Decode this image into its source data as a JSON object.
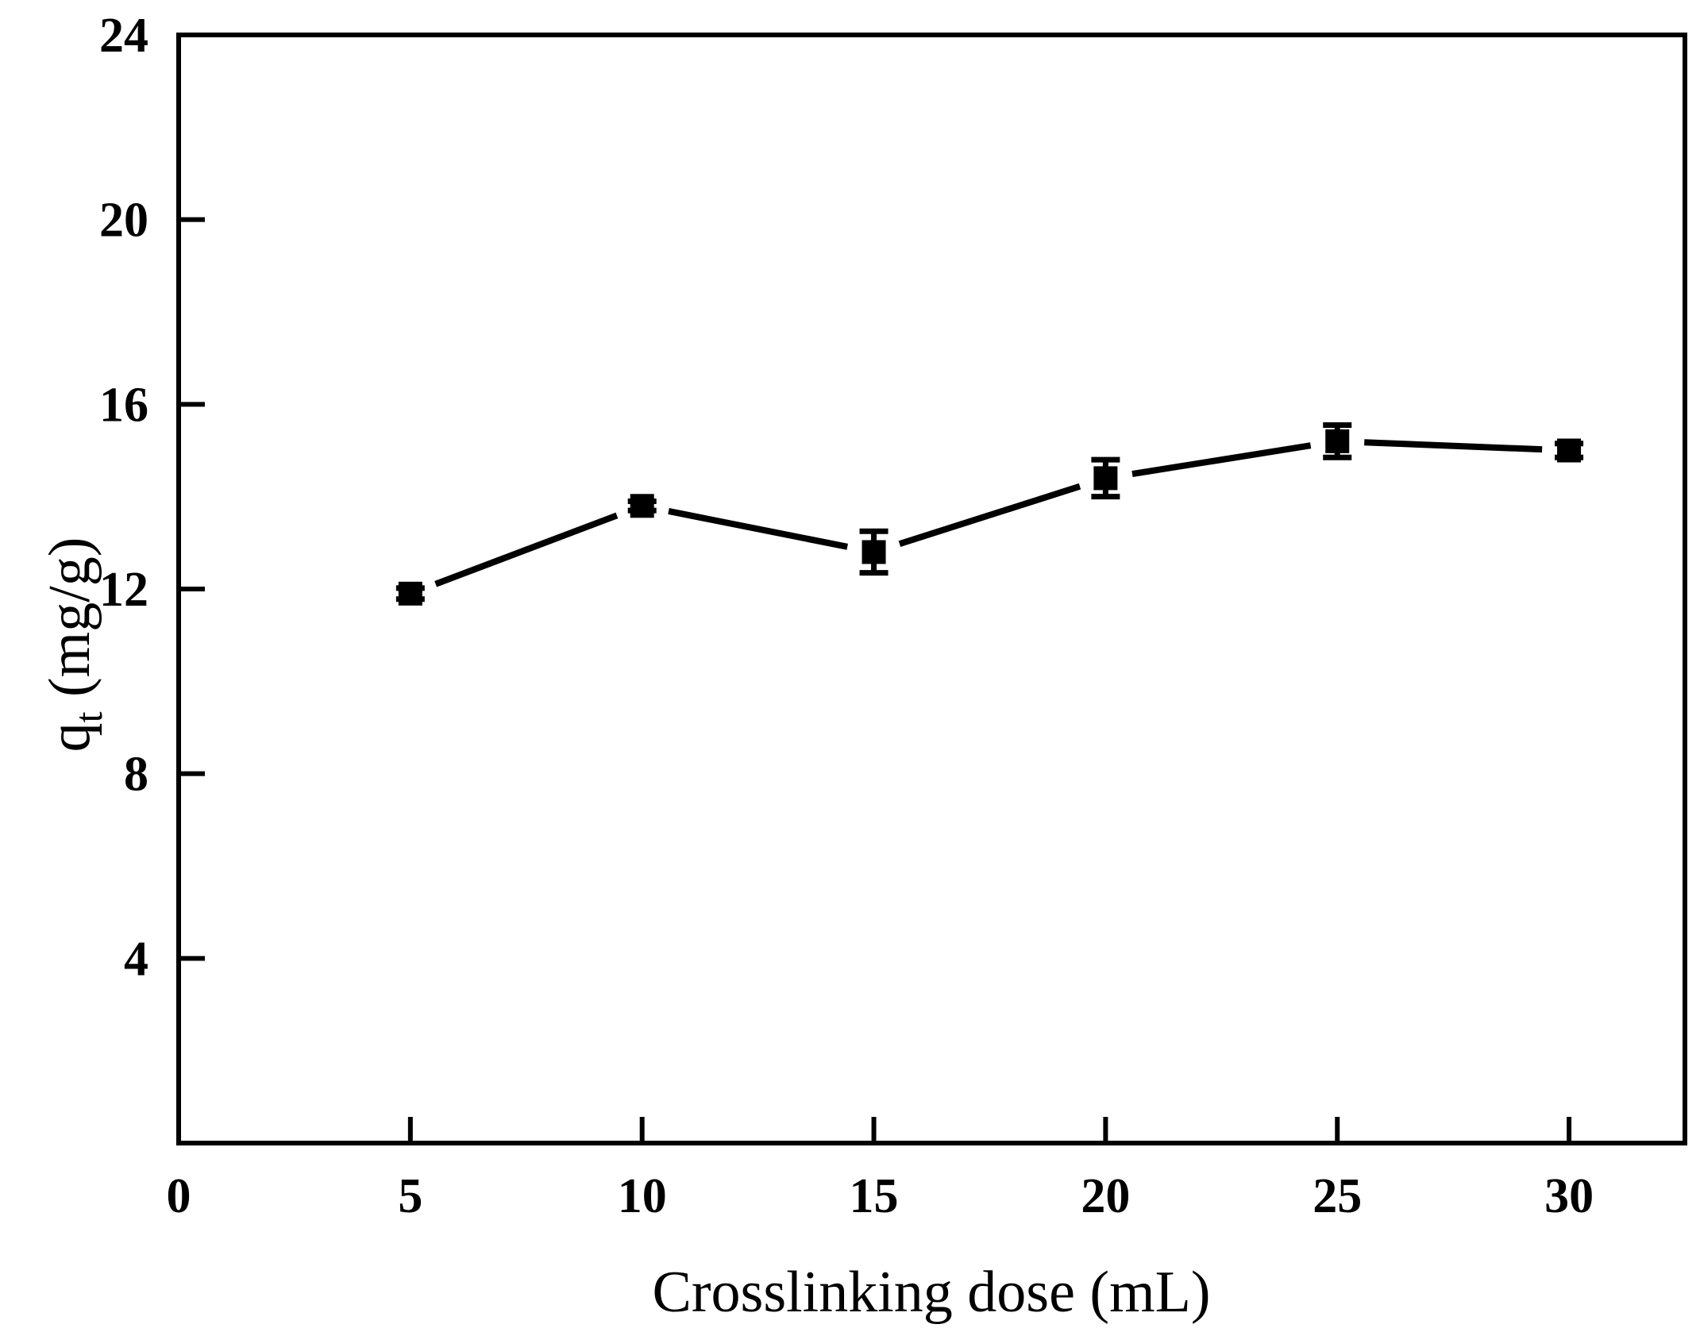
{
  "figure": {
    "background": "#ffffff",
    "ink_color": "#000000"
  },
  "chart_data": {
    "type": "line",
    "title": "",
    "xlabel": "Crosslinking dose (mL)",
    "ylabel": {
      "base": "q",
      "sub": "t",
      "rest": " (mg/g)"
    },
    "x": [
      5,
      10,
      15,
      20,
      25,
      30
    ],
    "series": [
      {
        "name": "qt",
        "values": [
          11.9,
          13.8,
          12.8,
          14.4,
          15.2,
          15.0
        ],
        "errors": [
          0.12,
          0.1,
          0.45,
          0.4,
          0.35,
          0.15
        ],
        "marker": "filled-square",
        "color": "#000000"
      }
    ],
    "xlim": [
      0,
      32.5
    ],
    "ylim": [
      0,
      24
    ],
    "xticks": [
      0,
      5,
      10,
      15,
      20,
      25,
      30
    ],
    "yticks": [
      4,
      8,
      12,
      16,
      20,
      24
    ],
    "grid": false,
    "legend": "none",
    "ticks_direction": "in"
  }
}
